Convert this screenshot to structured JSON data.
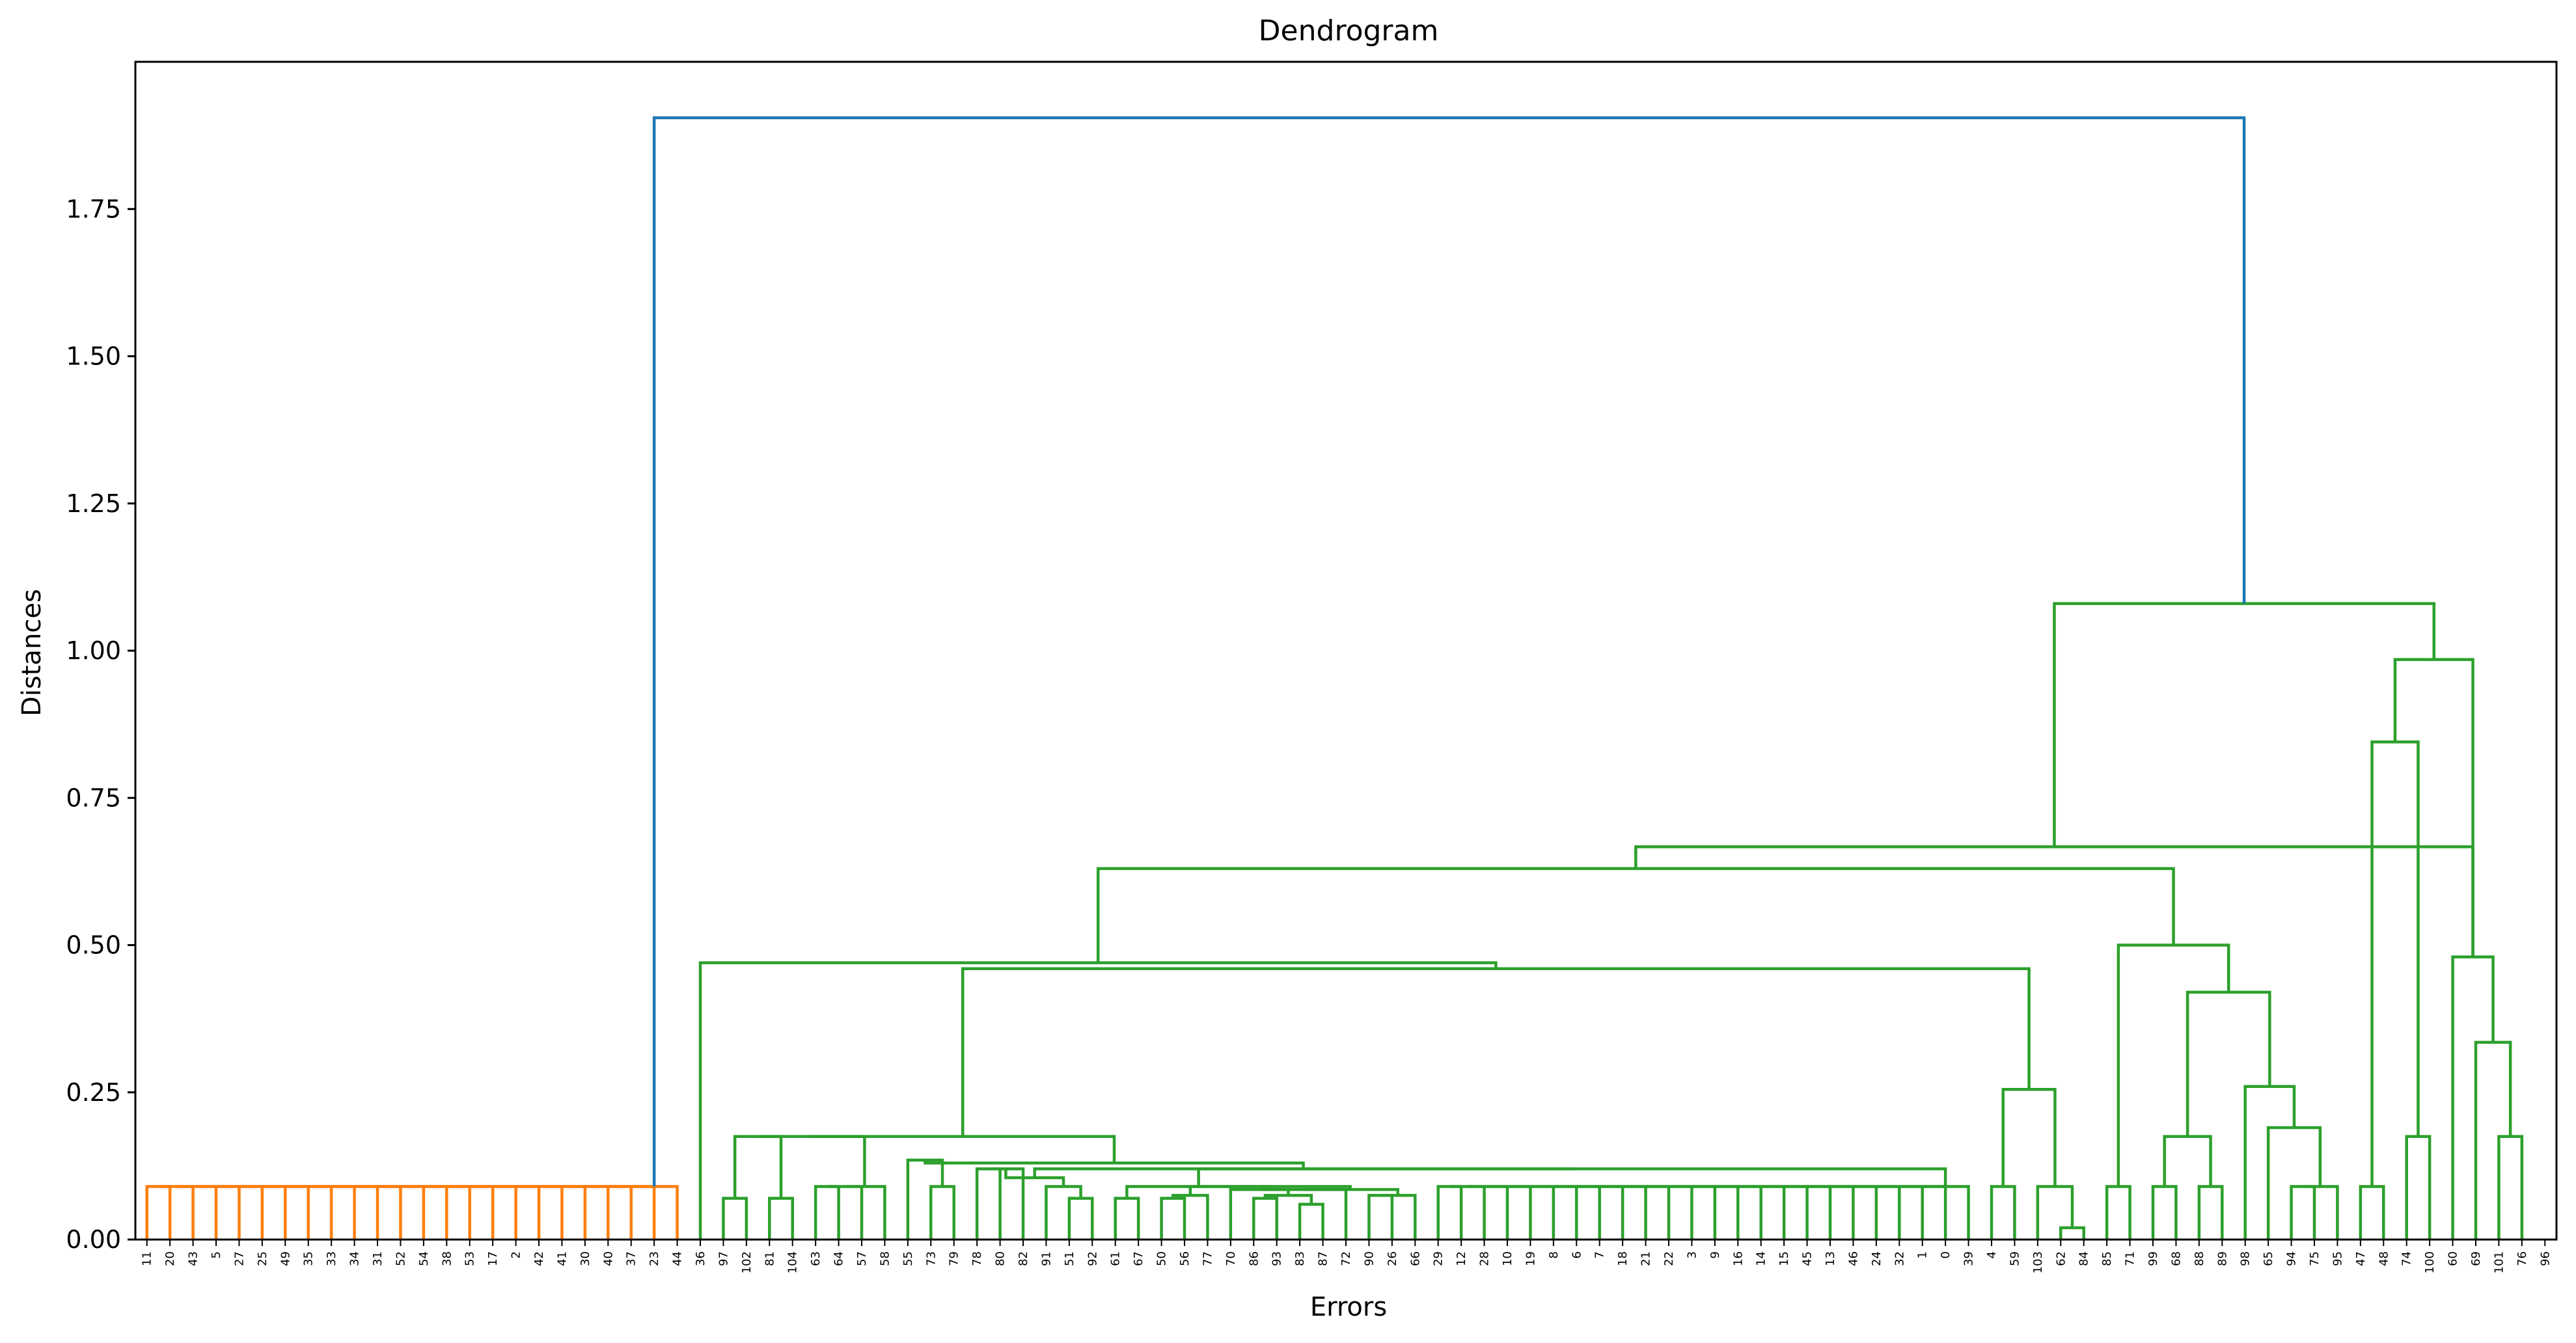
{
  "chart_data": {
    "type": "dendrogram",
    "title": "Dendrogram",
    "xlabel": "Errors",
    "ylabel": "Distances",
    "ylim": [
      0,
      2.0
    ],
    "yticks": [
      "0.00",
      "0.25",
      "0.50",
      "0.75",
      "1.00",
      "1.25",
      "1.50",
      "1.75"
    ],
    "grid": false,
    "colors": {
      "cluster_a": "#ff7f0e",
      "cluster_b": "#2ca02c",
      "above_threshold": "#1f77b4"
    },
    "leaves": [
      "11",
      "20",
      "43",
      "5",
      "27",
      "25",
      "49",
      "35",
      "33",
      "34",
      "31",
      "52",
      "54",
      "38",
      "53",
      "17",
      "2",
      "42",
      "41",
      "30",
      "40",
      "37",
      "23",
      "44",
      "36",
      "97",
      "102",
      "81",
      "104",
      "63",
      "64",
      "57",
      "58",
      "55",
      "73",
      "79",
      "78",
      "80",
      "82",
      "91",
      "51",
      "92",
      "61",
      "67",
      "50",
      "56",
      "77",
      "70",
      "86",
      "93",
      "83",
      "87",
      "72",
      "90",
      "26",
      "66",
      "29",
      "12",
      "28",
      "10",
      "19",
      "8",
      "6",
      "7",
      "18",
      "21",
      "22",
      "3",
      "9",
      "16",
      "14",
      "15",
      "45",
      "13",
      "46",
      "24",
      "32",
      "1",
      "0",
      "39",
      "4",
      "59",
      "103",
      "62",
      "84",
      "85",
      "71",
      "99",
      "68",
      "88",
      "89",
      "98",
      "65",
      "94",
      "75",
      "95",
      "47",
      "48",
      "74",
      "100",
      "60",
      "69",
      "101",
      "76",
      "96"
    ],
    "merges": [
      {
        "a": 0,
        "b": 1,
        "h": 0.09,
        "c": "a"
      },
      {
        "a": 105,
        "b": 2,
        "h": 0.09,
        "c": "a"
      },
      {
        "a": 106,
        "b": 3,
        "h": 0.09,
        "c": "a"
      },
      {
        "a": 107,
        "b": 4,
        "h": 0.09,
        "c": "a"
      },
      {
        "a": 108,
        "b": 5,
        "h": 0.09,
        "c": "a"
      },
      {
        "a": 109,
        "b": 6,
        "h": 0.09,
        "c": "a"
      },
      {
        "a": 110,
        "b": 7,
        "h": 0.09,
        "c": "a"
      },
      {
        "a": 111,
        "b": 8,
        "h": 0.09,
        "c": "a"
      },
      {
        "a": 112,
        "b": 9,
        "h": 0.09,
        "c": "a"
      },
      {
        "a": 113,
        "b": 10,
        "h": 0.09,
        "c": "a"
      },
      {
        "a": 114,
        "b": 11,
        "h": 0.09,
        "c": "a"
      },
      {
        "a": 115,
        "b": 12,
        "h": 0.09,
        "c": "a"
      },
      {
        "a": 116,
        "b": 13,
        "h": 0.09,
        "c": "a"
      },
      {
        "a": 117,
        "b": 14,
        "h": 0.09,
        "c": "a"
      },
      {
        "a": 118,
        "b": 15,
        "h": 0.09,
        "c": "a"
      },
      {
        "a": 119,
        "b": 16,
        "h": 0.09,
        "c": "a"
      },
      {
        "a": 120,
        "b": 17,
        "h": 0.09,
        "c": "a"
      },
      {
        "a": 121,
        "b": 18,
        "h": 0.09,
        "c": "a"
      },
      {
        "a": 122,
        "b": 19,
        "h": 0.09,
        "c": "a"
      },
      {
        "a": 123,
        "b": 20,
        "h": 0.09,
        "c": "a"
      },
      {
        "a": 124,
        "b": 21,
        "h": 0.09,
        "c": "a"
      },
      {
        "a": 125,
        "b": 22,
        "h": 0.09,
        "c": "a"
      },
      {
        "a": 126,
        "b": 23,
        "h": 0.09,
        "c": "a"
      },
      {
        "a": 25,
        "b": 26,
        "h": 0.07,
        "c": "b"
      },
      {
        "a": 27,
        "b": 28,
        "h": 0.07,
        "c": "b"
      },
      {
        "a": 29,
        "b": 30,
        "h": 0.09,
        "c": "b"
      },
      {
        "a": 130,
        "b": 31,
        "h": 0.09,
        "c": "b"
      },
      {
        "a": 131,
        "b": 32,
        "h": 0.09,
        "c": "b"
      },
      {
        "a": 128,
        "b": 129,
        "h": 0.175,
        "c": "b"
      },
      {
        "a": 133,
        "b": 132,
        "h": 0.175,
        "c": "b"
      },
      {
        "a": 34,
        "b": 35,
        "h": 0.09,
        "c": "b"
      },
      {
        "a": 33,
        "b": 135,
        "h": 0.135,
        "c": "b"
      },
      {
        "a": 36,
        "b": 37,
        "h": 0.12,
        "c": "b"
      },
      {
        "a": 137,
        "b": 38,
        "h": 0.12,
        "c": "b"
      },
      {
        "a": 40,
        "b": 41,
        "h": 0.07,
        "c": "b"
      },
      {
        "a": 39,
        "b": 139,
        "h": 0.09,
        "c": "b"
      },
      {
        "a": 140,
        "b": 138,
        "h": 0.105,
        "c": "b"
      },
      {
        "a": 42,
        "b": 43,
        "h": 0.07,
        "c": "b"
      },
      {
        "a": 44,
        "b": 45,
        "h": 0.07,
        "c": "b"
      },
      {
        "a": 143,
        "b": 46,
        "h": 0.075,
        "c": "b"
      },
      {
        "a": 48,
        "b": 49,
        "h": 0.07,
        "c": "b"
      },
      {
        "a": 50,
        "b": 51,
        "h": 0.06,
        "c": "b"
      },
      {
        "a": 145,
        "b": 146,
        "h": 0.075,
        "c": "b"
      },
      {
        "a": 147,
        "b": 47,
        "h": 0.085,
        "c": "b"
      },
      {
        "a": 53,
        "b": 54,
        "h": 0.075,
        "c": "b"
      },
      {
        "a": 149,
        "b": 55,
        "h": 0.075,
        "c": "b"
      },
      {
        "a": 148,
        "b": 52,
        "h": 0.085,
        "c": "b"
      },
      {
        "a": 151,
        "b": 150,
        "h": 0.085,
        "c": "b"
      },
      {
        "a": 144,
        "b": 152,
        "h": 0.09,
        "c": "b"
      },
      {
        "a": 142,
        "b": 153,
        "h": 0.09,
        "c": "b"
      },
      {
        "a": 56,
        "b": 57,
        "h": 0.09,
        "c": "b"
      },
      {
        "a": 155,
        "b": 58,
        "h": 0.09,
        "c": "b"
      },
      {
        "a": 156,
        "b": 59,
        "h": 0.09,
        "c": "b"
      },
      {
        "a": 157,
        "b": 60,
        "h": 0.09,
        "c": "b"
      },
      {
        "a": 158,
        "b": 61,
        "h": 0.09,
        "c": "b"
      },
      {
        "a": 159,
        "b": 62,
        "h": 0.09,
        "c": "b"
      },
      {
        "a": 160,
        "b": 63,
        "h": 0.09,
        "c": "b"
      },
      {
        "a": 161,
        "b": 64,
        "h": 0.09,
        "c": "b"
      },
      {
        "a": 162,
        "b": 65,
        "h": 0.09,
        "c": "b"
      },
      {
        "a": 163,
        "b": 66,
        "h": 0.09,
        "c": "b"
      },
      {
        "a": 164,
        "b": 67,
        "h": 0.09,
        "c": "b"
      },
      {
        "a": 165,
        "b": 68,
        "h": 0.09,
        "c": "b"
      },
      {
        "a": 166,
        "b": 69,
        "h": 0.09,
        "c": "b"
      },
      {
        "a": 167,
        "b": 70,
        "h": 0.09,
        "c": "b"
      },
      {
        "a": 168,
        "b": 71,
        "h": 0.09,
        "c": "b"
      },
      {
        "a": 169,
        "b": 72,
        "h": 0.09,
        "c": "b"
      },
      {
        "a": 170,
        "b": 73,
        "h": 0.09,
        "c": "b"
      },
      {
        "a": 171,
        "b": 74,
        "h": 0.09,
        "c": "b"
      },
      {
        "a": 172,
        "b": 75,
        "h": 0.09,
        "c": "b"
      },
      {
        "a": 173,
        "b": 76,
        "h": 0.09,
        "c": "b"
      },
      {
        "a": 174,
        "b": 77,
        "h": 0.09,
        "c": "b"
      },
      {
        "a": 175,
        "b": 78,
        "h": 0.09,
        "c": "b"
      },
      {
        "a": 176,
        "b": 79,
        "h": 0.09,
        "c": "b"
      },
      {
        "a": 154,
        "b": 177,
        "h": 0.12,
        "c": "b"
      },
      {
        "a": 141,
        "b": 178,
        "h": 0.12,
        "c": "b"
      },
      {
        "a": 136,
        "b": 179,
        "h": 0.13,
        "c": "b"
      },
      {
        "a": 134,
        "b": 180,
        "h": 0.175,
        "c": "b"
      },
      {
        "a": 80,
        "b": 81,
        "h": 0.09,
        "c": "b"
      },
      {
        "a": 83,
        "b": 84,
        "h": 0.02,
        "c": "b"
      },
      {
        "a": 82,
        "b": 183,
        "h": 0.09,
        "c": "b"
      },
      {
        "a": 182,
        "b": 184,
        "h": 0.255,
        "c": "b"
      },
      {
        "a": 181,
        "b": 185,
        "h": 0.46,
        "c": "b"
      },
      {
        "a": 24,
        "b": 186,
        "h": 0.47,
        "c": "b"
      },
      {
        "a": 85,
        "b": 86,
        "h": 0.09,
        "c": "b"
      },
      {
        "a": 87,
        "b": 88,
        "h": 0.09,
        "c": "b"
      },
      {
        "a": 89,
        "b": 90,
        "h": 0.09,
        "c": "b"
      },
      {
        "a": 189,
        "b": 190,
        "h": 0.175,
        "c": "b"
      },
      {
        "a": 93,
        "b": 94,
        "h": 0.09,
        "c": "b"
      },
      {
        "a": 192,
        "b": 95,
        "h": 0.09,
        "c": "b"
      },
      {
        "a": 92,
        "b": 193,
        "h": 0.19,
        "c": "b"
      },
      {
        "a": 91,
        "b": 194,
        "h": 0.26,
        "c": "b"
      },
      {
        "a": 191,
        "b": 195,
        "h": 0.42,
        "c": "b"
      },
      {
        "a": 188,
        "b": 196,
        "h": 0.5,
        "c": "b"
      },
      {
        "a": 187,
        "b": 197,
        "h": 0.63,
        "c": "b"
      },
      {
        "a": 96,
        "b": 97,
        "h": 0.09,
        "c": "b"
      },
      {
        "a": 98,
        "b": 99,
        "h": 0.175,
        "c": "b"
      },
      {
        "a": 199,
        "b": 200,
        "h": 0.845,
        "c": "b"
      },
      {
        "a": 102,
        "b": 103,
        "h": 0.175,
        "c": "b"
      },
      {
        "a": 101,
        "b": 202,
        "h": 0.335,
        "c": "b"
      },
      {
        "a": 100,
        "b": 203,
        "h": 0.48,
        "c": "b"
      },
      {
        "a": 201,
        "b": 204,
        "h": 0.985,
        "c": "b"
      },
      {
        "a": 205,
        "b": 204,
        "h": 0,
        "c": "skip"
      },
      {
        "a": 198,
        "b": 206,
        "h": 0.667,
        "c": "b"
      },
      {
        "a": 207,
        "b": 205,
        "h": 1.08,
        "c": "b"
      },
      {
        "a": 127,
        "b": 208,
        "h": 1.905,
        "c": "top"
      }
    ]
  }
}
